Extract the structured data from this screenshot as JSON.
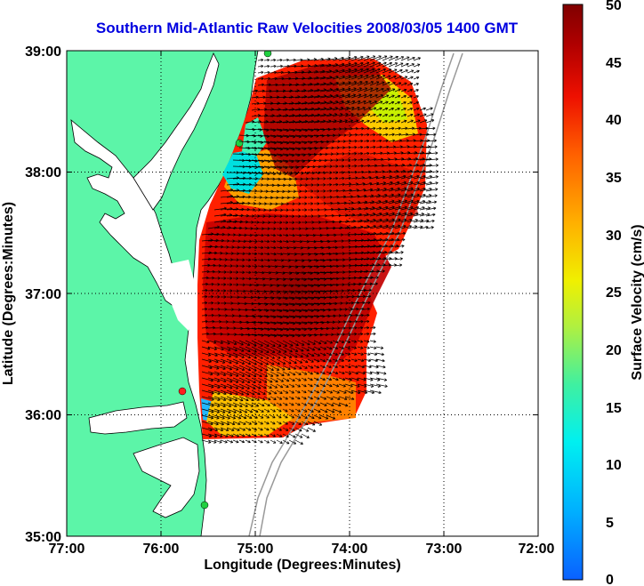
{
  "title": "Southern Mid-Atlantic Raw Velocities 2008/03/05 1400 GMT",
  "x_axis": {
    "label": "Longitude (Degrees:Minutes)",
    "ticks": [
      "77:00",
      "76:00",
      "75:00",
      "74:00",
      "73:00",
      "72:00"
    ]
  },
  "y_axis": {
    "label": "Latitude (Degrees:Minutes)",
    "ticks": [
      "39:00",
      "38:00",
      "37:00",
      "36:00",
      "35:00"
    ]
  },
  "colorbar": {
    "label": "Surface Velocity (cm/s)",
    "ticks": [
      "50",
      "45",
      "40",
      "35",
      "30",
      "25",
      "20",
      "15",
      "10",
      "5",
      "0"
    ],
    "range": [
      0,
      50
    ]
  },
  "colors": {
    "land": "#5cf5a8",
    "grid": "#000000",
    "title": "#0000e0",
    "station_red": "#ff2020",
    "station_green": "#20d040"
  },
  "map_extent": {
    "lon": [
      -77,
      -72
    ],
    "lat": [
      35,
      39
    ]
  }
}
